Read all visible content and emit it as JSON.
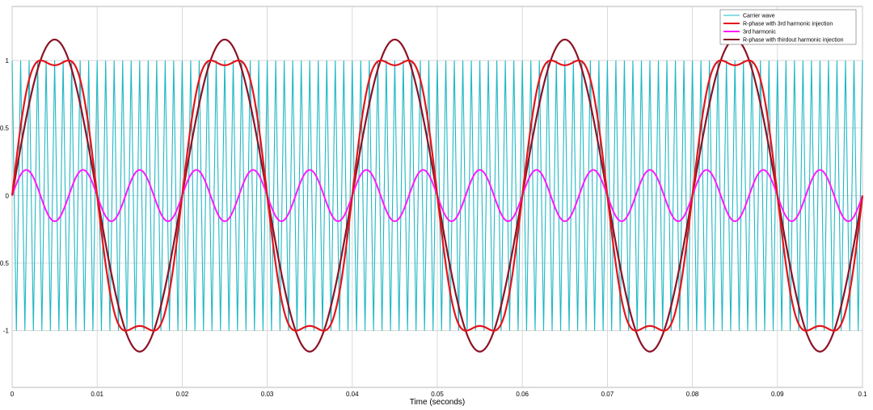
{
  "chart_data": {
    "type": "line",
    "title": "",
    "xlabel": "Time (seconds)",
    "ylabel": "",
    "xlim": [
      0,
      0.1
    ],
    "ylim": [
      -1.42,
      1.4
    ],
    "grid": true,
    "legend_placement": "top-right",
    "x_ticks": [
      "0",
      "0.01",
      "0.02",
      "0.03",
      "0.04",
      "0.05",
      "0.06",
      "0.07",
      "0.08",
      "0.09",
      "0.1"
    ],
    "y_ticks": [
      "1",
      "0.5",
      "0",
      "-0.5",
      "-1"
    ],
    "series": [
      {
        "name": "Carrier wave",
        "color": "#1fb8c4",
        "waveform": "triangle",
        "frequency_hz": 1000,
        "amplitude": 1,
        "note_samples": "peaks at +1 and -1, 100 cycles over 0-0.1 s"
      },
      {
        "name": "R-phase with 3rd harmonic injection",
        "color": "#e3141b",
        "waveform": "sine + 3rd harmonic",
        "fundamental_frequency_hz": 50,
        "fundamental_amplitude": 1.155,
        "third_harmonic_amplitude": 0.19,
        "peak": 1.0
      },
      {
        "name": "3rd harmonic",
        "color": "#ff19ff",
        "waveform": "sine",
        "frequency_hz": 150,
        "amplitude": 0.19
      },
      {
        "name": "R-phase with thirdout harmonic injection",
        "color": "#8c1226",
        "waveform": "sine",
        "frequency_hz": 50,
        "amplitude": 1.155
      }
    ]
  },
  "colors": {
    "background": "#ffffff",
    "grid": "#d0d0d0",
    "axis": "#000000"
  }
}
